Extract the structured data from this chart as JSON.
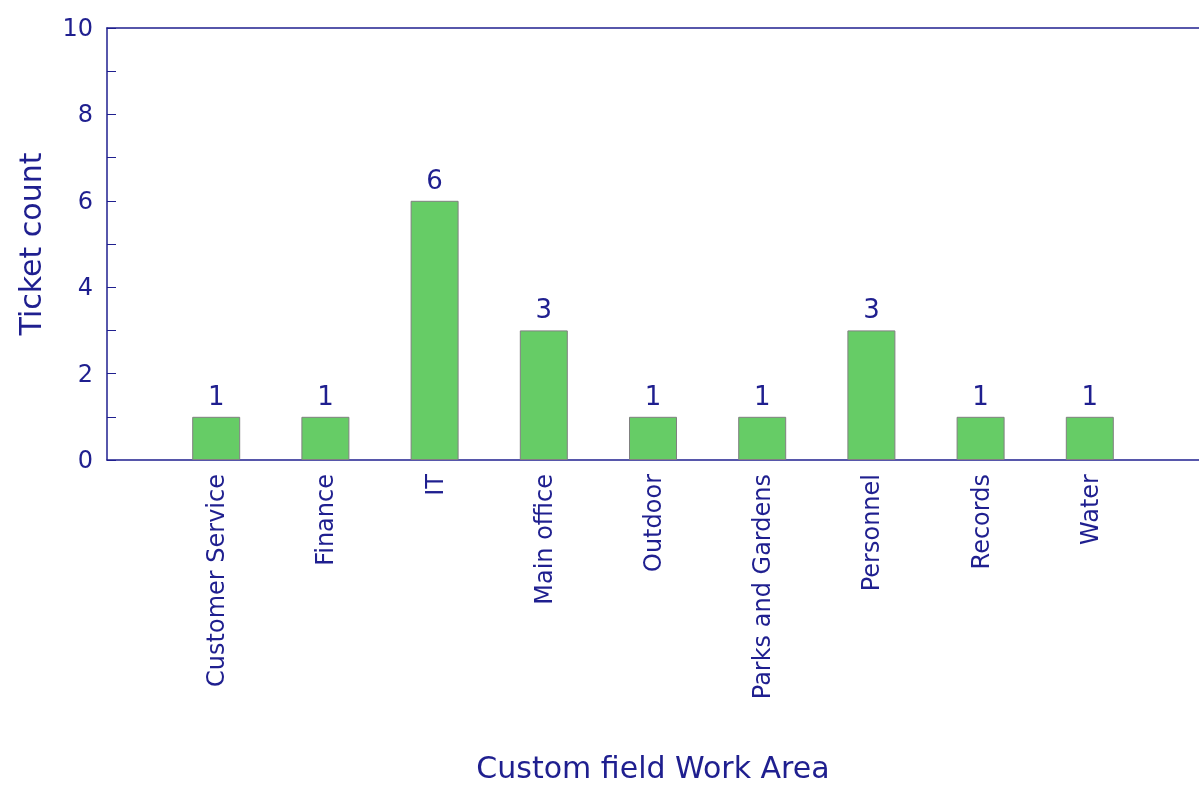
{
  "chart_data": {
    "type": "bar",
    "xlabel": "Custom field Work Area",
    "ylabel": "Ticket count",
    "categories": [
      "Customer Service",
      "Finance",
      "IT",
      "Main office",
      "Outdoor",
      "Parks and Gardens",
      "Personnel",
      "Records",
      "Water"
    ],
    "values": [
      1,
      1,
      6,
      3,
      1,
      1,
      3,
      1,
      1
    ],
    "color": "#66cc66",
    "ylim": [
      0,
      10
    ],
    "yticks": [
      0,
      {
        "value": 1,
        "label": null
      },
      2,
      {
        "value": 3,
        "label": null
      },
      4,
      {
        "value": 5,
        "label": null
      },
      6,
      {
        "value": 7,
        "label": null
      },
      8,
      {
        "value": 9,
        "label": null
      },
      10
    ],
    "grid": false,
    "data_labels": true
  }
}
